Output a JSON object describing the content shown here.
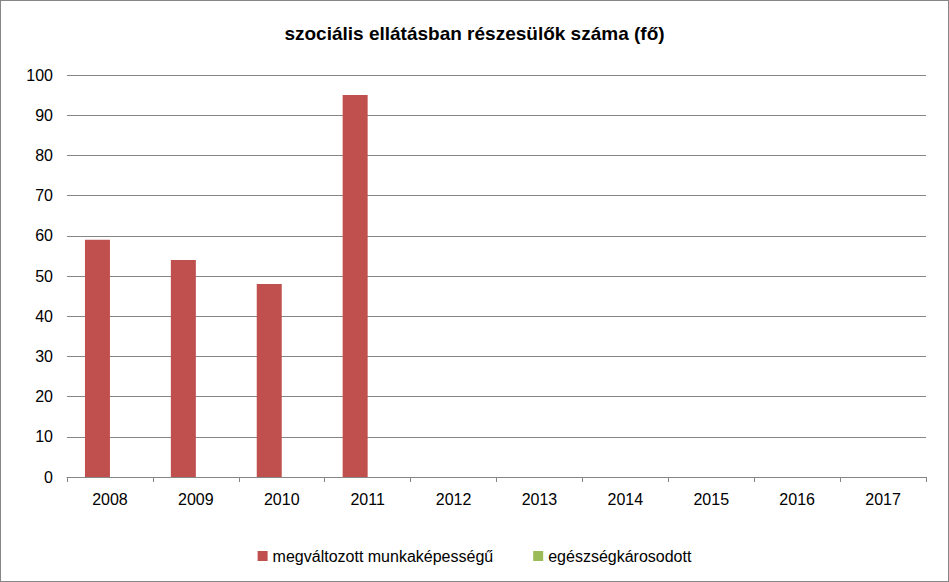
{
  "chart_data": {
    "type": "bar",
    "title": "szociális ellátásban részesülők száma (fő)",
    "categories": [
      "2008",
      "2009",
      "2010",
      "2011",
      "2012",
      "2013",
      "2014",
      "2015",
      "2016",
      "2017"
    ],
    "series": [
      {
        "name": "megváltozott munkaképességű",
        "color": "#c0504d",
        "values": [
          59,
          54,
          48,
          95,
          null,
          null,
          null,
          null,
          null,
          null
        ]
      },
      {
        "name": "egészségkárosodott",
        "color": "#9bbb59",
        "values": [
          null,
          null,
          null,
          null,
          null,
          null,
          null,
          null,
          null,
          null
        ]
      }
    ],
    "ylim": [
      0,
      100
    ],
    "yticks": [
      0,
      10,
      20,
      30,
      40,
      50,
      60,
      70,
      80,
      90,
      100
    ],
    "grid": true,
    "legend": "bottom"
  }
}
